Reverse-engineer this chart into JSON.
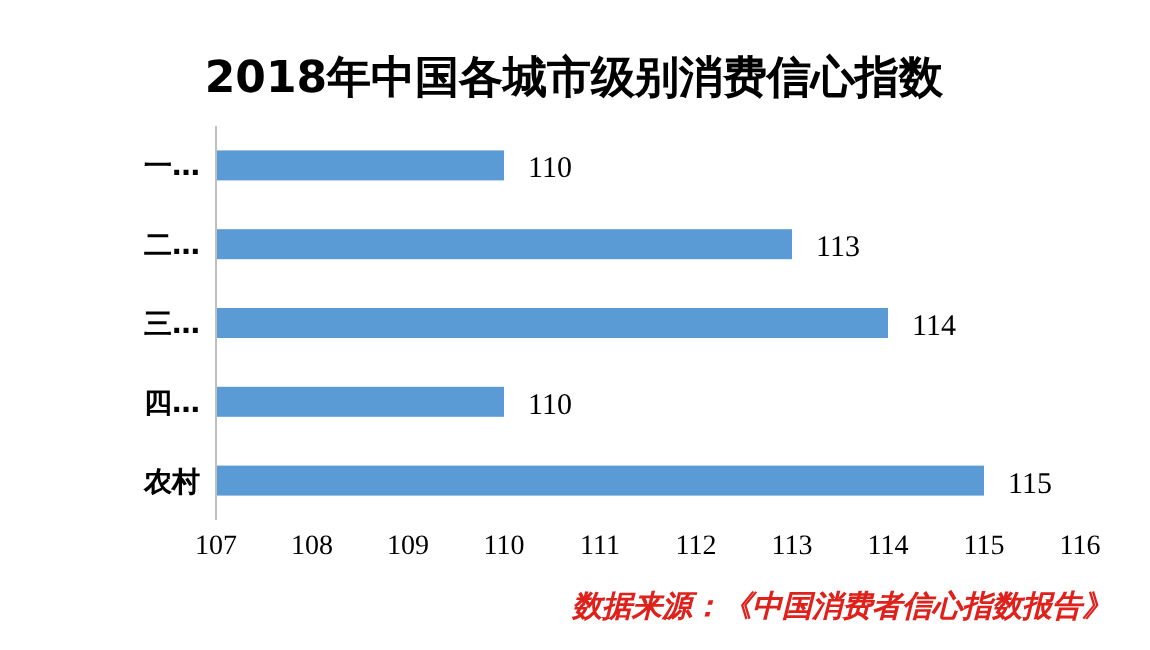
{
  "chart_data": {
    "type": "bar",
    "orientation": "horizontal",
    "title": "2018年中国各城市级别消费信心指数",
    "categories": [
      "一…",
      "二…",
      "三…",
      "四…",
      "农村"
    ],
    "values": [
      110,
      113,
      114,
      110,
      115
    ],
    "color": "#5b9bd5",
    "xlim": [
      107,
      116
    ],
    "xticks": [
      107,
      108,
      109,
      110,
      111,
      112,
      113,
      114,
      115,
      116
    ],
    "data_labels": true,
    "annotations": [
      "数据来源：《中国消费者信心指数报告》"
    ]
  }
}
